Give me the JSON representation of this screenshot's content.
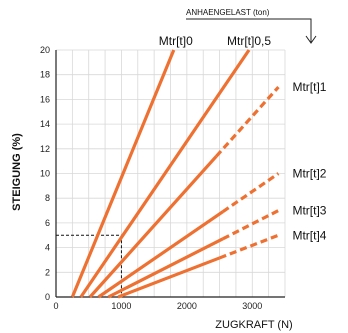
{
  "chart_data": {
    "type": "line",
    "top_label": "ANHAENGELAST (ton)",
    "xlabel": "ZUGKRAFT (N)",
    "ylabel": "STEIGUNG (%)",
    "xlim": [
      0,
      3500
    ],
    "ylim": [
      0,
      20
    ],
    "x_ticks": [
      0,
      1000,
      2000,
      3000
    ],
    "y_ticks": [
      0,
      2,
      4,
      6,
      8,
      10,
      12,
      14,
      16,
      18,
      20
    ],
    "grid": true,
    "line_color": "#EE7132",
    "reference": {
      "x": 1000,
      "y": 5
    },
    "series": [
      {
        "name": "Mtr[t]0",
        "points": [
          [
            250,
            0
          ],
          [
            1800,
            20
          ]
        ],
        "dashed_from": null
      },
      {
        "name": "Mtr[t]0,5",
        "points": [
          [
            380,
            0
          ],
          [
            2950,
            20
          ]
        ],
        "dashed_from": null
      },
      {
        "name": "Mtr[t]1",
        "points": [
          [
            520,
            0
          ],
          [
            3400,
            17
          ]
        ],
        "dashed_from": 2450
      },
      {
        "name": "Mtr[t]2",
        "points": [
          [
            650,
            0
          ],
          [
            3400,
            10
          ]
        ],
        "dashed_from": 2550
      },
      {
        "name": "Mtr[t]3",
        "points": [
          [
            800,
            0
          ],
          [
            3400,
            7
          ]
        ],
        "dashed_from": 2550
      },
      {
        "name": "Mtr[t]4",
        "points": [
          [
            950,
            0
          ],
          [
            3400,
            5
          ]
        ],
        "dashed_from": 2500
      }
    ]
  }
}
